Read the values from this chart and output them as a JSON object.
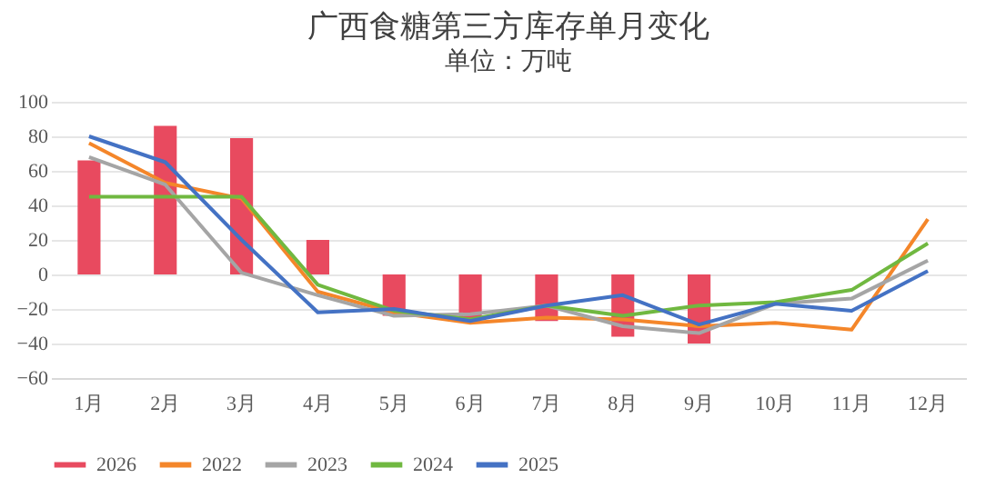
{
  "chart_data": {
    "type": "bar",
    "title": "广西食糖第三方库存单月变化",
    "subtitle": "单位：万吨",
    "categories": [
      "1月",
      "2月",
      "3月",
      "4月",
      "5月",
      "6月",
      "7月",
      "8月",
      "9月",
      "10月",
      "11月",
      "12月"
    ],
    "series": [
      {
        "name": "2026",
        "color": "#e84a5f",
        "values": [
          66,
          86,
          79,
          20,
          -24,
          -26,
          -27,
          -36,
          -40,
          null,
          null,
          null
        ]
      },
      {
        "name": "2022",
        "type": "line",
        "color": "#f4862a",
        "values": [
          76,
          53,
          44,
          -10,
          -22,
          -28,
          -25,
          -26,
          -30,
          -28,
          -32,
          32
        ]
      },
      {
        "name": "2023",
        "type": "line",
        "color": "#a5a5a5",
        "values": [
          68,
          52,
          1,
          -12,
          -24,
          -23,
          -18,
          -30,
          -34,
          -17,
          -14,
          8
        ]
      },
      {
        "name": "2024",
        "type": "line",
        "color": "#70b840",
        "values": [
          45,
          45,
          45,
          -6,
          -21,
          -26,
          -18,
          -24,
          -18,
          -16,
          -9,
          18
        ]
      },
      {
        "name": "2025",
        "type": "line",
        "color": "#4472c4",
        "values": [
          80,
          65,
          20,
          -22,
          -20,
          -27,
          -18,
          -12,
          -29,
          -17,
          -21,
          2
        ]
      }
    ],
    "ylim": [
      -60,
      100
    ],
    "yticks": [
      -60,
      -40,
      -20,
      0,
      20,
      40,
      60,
      80,
      100
    ],
    "grid": "y",
    "legend": "bottom"
  }
}
